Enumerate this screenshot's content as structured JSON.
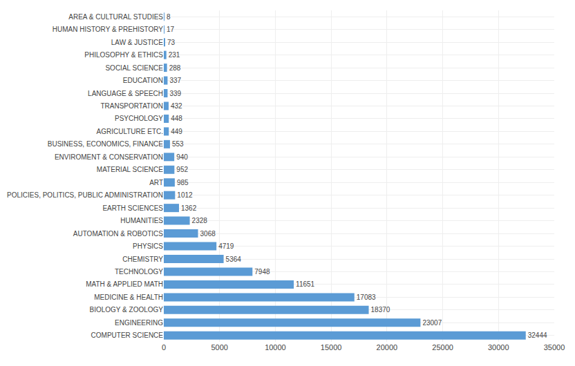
{
  "chart_data": {
    "type": "bar",
    "orientation": "horizontal",
    "categories": [
      "COMPUTER SCIENCE",
      "ENGINEERING",
      "BIOLOGY & ZOOLOGY",
      "MEDICINE & HEALTH",
      "MATH & APPLIED MATH",
      "TECHNOLOGY",
      "CHEMISTRY",
      "PHYSICS",
      "AUTOMATION & ROBOTICS",
      "HUMANITIES",
      "EARTH SCIENCES",
      "POLICIES, POLITICS, PUBLIC ADMINISTRATION",
      "ART",
      "MATERIAL SCIENCE",
      "ENVIROMENT & CONSERVATION",
      "BUSINESS, ECONOMICS, FINANCE",
      "AGRICULTURE ETC.",
      "PSYCHOLOGY",
      "TRANSPORTATION",
      "LANGUAGE & SPEECH",
      "EDUCATION",
      "SOCIAL SCIENCE",
      "PHILOSOPHY & ETHICS",
      "LAW & JUSTICE",
      "HUMAN HISTORY & PREHISTORY",
      "AREA & CULTURAL STUDIES"
    ],
    "values": [
      32444,
      23007,
      18370,
      17083,
      11651,
      7948,
      5364,
      4719,
      3068,
      2328,
      1362,
      1012,
      985,
      952,
      940,
      553,
      449,
      448,
      432,
      339,
      337,
      288,
      231,
      73,
      17,
      8
    ],
    "color": "#5B9BD5",
    "xlim": [
      0,
      35000
    ],
    "xticks": [
      0,
      5000,
      10000,
      15000,
      20000,
      25000,
      30000,
      35000
    ],
    "grid": true,
    "data_labels": true
  }
}
